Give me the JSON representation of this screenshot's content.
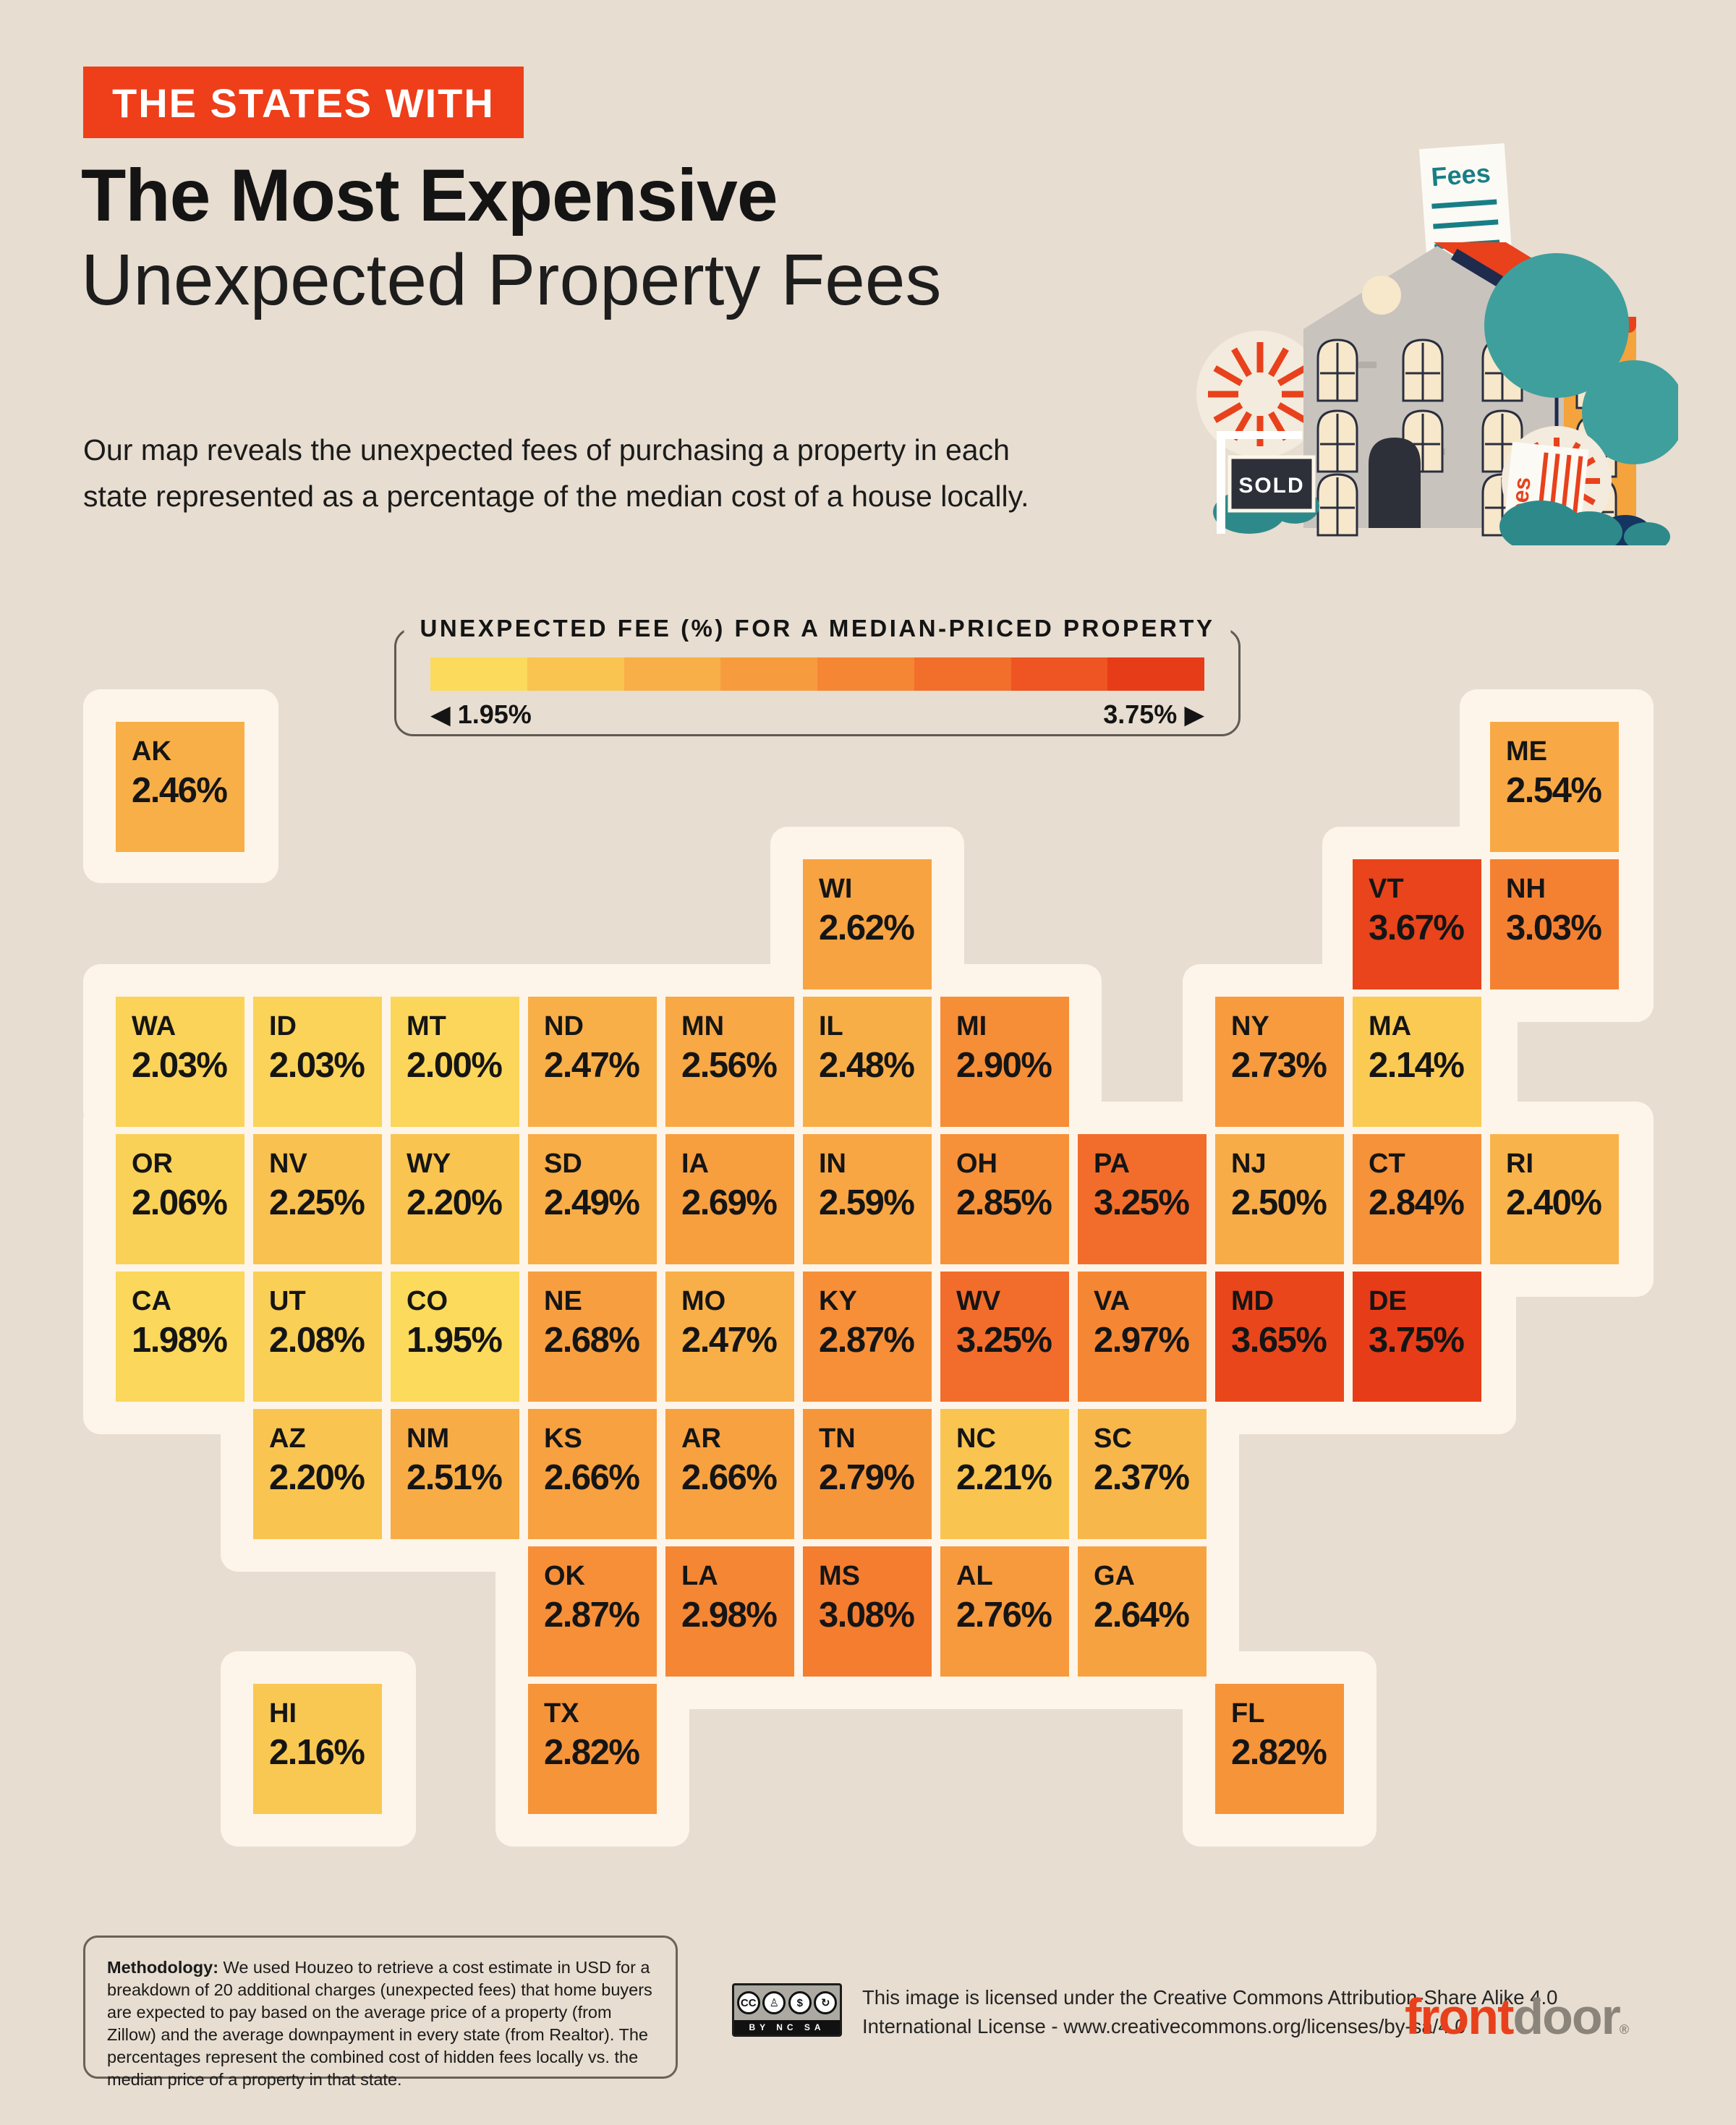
{
  "page": {
    "background": "#E7DDD0",
    "cream": "#FDF5E9",
    "accent_red": "#EE3E1A",
    "text_dark": "#141414"
  },
  "header": {
    "badge": "THE STATES WITH",
    "title_bold": "The Most Expensive",
    "title_light": "Unexpected Property Fees",
    "subtitle_line1": "Our map reveals the unexpected fees of purchasing a property in each",
    "subtitle_line2": "state represented as a percentage of the median cost of a house locally."
  },
  "illustration": {
    "fees_label_top": "Fees",
    "fees_label_bottom": "Fees",
    "sold_label": "SOLD",
    "tree_color": "#3F9F9D",
    "building_gray": "#C8C3BD",
    "roof_red": "#E8411C",
    "wing_orange": "#F5A33C",
    "receipt_teal": "#187E86"
  },
  "legend": {
    "title": "UNEXPECTED FEE (%) FOR A MEDIAN-PRICED PROPERTY",
    "left_arrow": "◀",
    "right_arrow": "▶",
    "min_label": "1.95%",
    "max_label": "3.75%",
    "min_value": 1.95,
    "max_value": 3.75,
    "stops": [
      "#FBDA5C",
      "#F9C450",
      "#F8AF48",
      "#F79C3E",
      "#F58634",
      "#F26E2B",
      "#EE5523",
      "#E73C18"
    ]
  },
  "chart_data": {
    "type": "heatmap",
    "title": "Unexpected fee (%) for a median-priced property, by US state (tile grid map)",
    "value_format": "percent",
    "value_min": 1.95,
    "value_max": 3.75,
    "legend_position": "top",
    "states": [
      {
        "abbr": "AK",
        "value": 2.46,
        "row": 1,
        "col": 1
      },
      {
        "abbr": "ME",
        "value": 2.54,
        "row": 1,
        "col": 11
      },
      {
        "abbr": "WI",
        "value": 2.62,
        "row": 2,
        "col": 6
      },
      {
        "abbr": "VT",
        "value": 3.67,
        "row": 2,
        "col": 10
      },
      {
        "abbr": "NH",
        "value": 3.03,
        "row": 2,
        "col": 11
      },
      {
        "abbr": "WA",
        "value": 2.03,
        "row": 3,
        "col": 1
      },
      {
        "abbr": "ID",
        "value": 2.03,
        "row": 3,
        "col": 2
      },
      {
        "abbr": "MT",
        "value": 2.0,
        "row": 3,
        "col": 3
      },
      {
        "abbr": "ND",
        "value": 2.47,
        "row": 3,
        "col": 4
      },
      {
        "abbr": "MN",
        "value": 2.56,
        "row": 3,
        "col": 5
      },
      {
        "abbr": "IL",
        "value": 2.48,
        "row": 3,
        "col": 6
      },
      {
        "abbr": "MI",
        "value": 2.9,
        "row": 3,
        "col": 7
      },
      {
        "abbr": "NY",
        "value": 2.73,
        "row": 3,
        "col": 9
      },
      {
        "abbr": "MA",
        "value": 2.14,
        "row": 3,
        "col": 10
      },
      {
        "abbr": "OR",
        "value": 2.06,
        "row": 4,
        "col": 1
      },
      {
        "abbr": "NV",
        "value": 2.25,
        "row": 4,
        "col": 2
      },
      {
        "abbr": "WY",
        "value": 2.2,
        "row": 4,
        "col": 3
      },
      {
        "abbr": "SD",
        "value": 2.49,
        "row": 4,
        "col": 4
      },
      {
        "abbr": "IA",
        "value": 2.69,
        "row": 4,
        "col": 5
      },
      {
        "abbr": "IN",
        "value": 2.59,
        "row": 4,
        "col": 6
      },
      {
        "abbr": "OH",
        "value": 2.85,
        "row": 4,
        "col": 7
      },
      {
        "abbr": "PA",
        "value": 3.25,
        "row": 4,
        "col": 8
      },
      {
        "abbr": "NJ",
        "value": 2.5,
        "row": 4,
        "col": 9
      },
      {
        "abbr": "CT",
        "value": 2.84,
        "row": 4,
        "col": 10
      },
      {
        "abbr": "RI",
        "value": 2.4,
        "row": 4,
        "col": 11
      },
      {
        "abbr": "CA",
        "value": 1.98,
        "row": 5,
        "col": 1
      },
      {
        "abbr": "UT",
        "value": 2.08,
        "row": 5,
        "col": 2
      },
      {
        "abbr": "CO",
        "value": 1.95,
        "row": 5,
        "col": 3
      },
      {
        "abbr": "NE",
        "value": 2.68,
        "row": 5,
        "col": 4
      },
      {
        "abbr": "MO",
        "value": 2.47,
        "row": 5,
        "col": 5
      },
      {
        "abbr": "KY",
        "value": 2.87,
        "row": 5,
        "col": 6
      },
      {
        "abbr": "WV",
        "value": 3.25,
        "row": 5,
        "col": 7
      },
      {
        "abbr": "VA",
        "value": 2.97,
        "row": 5,
        "col": 8
      },
      {
        "abbr": "MD",
        "value": 3.65,
        "row": 5,
        "col": 9
      },
      {
        "abbr": "DE",
        "value": 3.75,
        "row": 5,
        "col": 10
      },
      {
        "abbr": "AZ",
        "value": 2.2,
        "row": 6,
        "col": 2
      },
      {
        "abbr": "NM",
        "value": 2.51,
        "row": 6,
        "col": 3
      },
      {
        "abbr": "KS",
        "value": 2.66,
        "row": 6,
        "col": 4
      },
      {
        "abbr": "AR",
        "value": 2.66,
        "row": 6,
        "col": 5
      },
      {
        "abbr": "TN",
        "value": 2.79,
        "row": 6,
        "col": 6
      },
      {
        "abbr": "NC",
        "value": 2.21,
        "row": 6,
        "col": 7
      },
      {
        "abbr": "SC",
        "value": 2.37,
        "row": 6,
        "col": 8
      },
      {
        "abbr": "OK",
        "value": 2.87,
        "row": 7,
        "col": 4
      },
      {
        "abbr": "LA",
        "value": 2.98,
        "row": 7,
        "col": 5
      },
      {
        "abbr": "MS",
        "value": 3.08,
        "row": 7,
        "col": 6
      },
      {
        "abbr": "AL",
        "value": 2.76,
        "row": 7,
        "col": 7
      },
      {
        "abbr": "GA",
        "value": 2.64,
        "row": 7,
        "col": 8
      },
      {
        "abbr": "HI",
        "value": 2.16,
        "row": 8,
        "col": 2
      },
      {
        "abbr": "TX",
        "value": 2.82,
        "row": 8,
        "col": 4
      },
      {
        "abbr": "FL",
        "value": 2.82,
        "row": 8,
        "col": 9
      }
    ]
  },
  "footer": {
    "methodology_label": "Methodology:",
    "methodology_body": " We used Houzeo to retrieve a cost estimate in USD for a breakdown of 20 additional charges (unexpected fees) that home buyers are expected to pay based on the average price of a property (from Zillow) and the average downpayment in every state (from Realtor). The percentages represent the combined cost of hidden fees locally vs. the median price of a property in that state.",
    "license_line1": "This image is licensed under the Creative Commons Attribution-Share Alike 4.0",
    "license_line2": "International License - www.creativecommons.org/licenses/by-sa/4.0",
    "cc_icons": [
      "CC",
      "♙",
      "$",
      "↻"
    ],
    "cc_strip": "BY NC SA",
    "logo_part1": "front",
    "logo_part2": "door",
    "logo_reg": "®"
  }
}
